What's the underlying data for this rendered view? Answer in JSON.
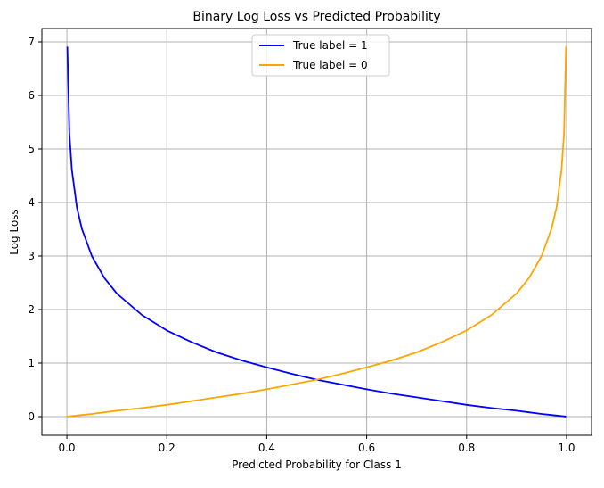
{
  "chart_data": {
    "type": "line",
    "title": "Binary Log Loss vs Predicted Probability",
    "xlabel": "Predicted Probability for Class 1",
    "ylabel": "Log Loss",
    "xlim": [
      -0.05,
      1.05
    ],
    "ylim": [
      -0.35,
      7.25
    ],
    "grid": true,
    "legend_position": "top-center",
    "x_ticks": [
      {
        "value": 0.0,
        "label": "0.0"
      },
      {
        "value": 0.2,
        "label": "0.2"
      },
      {
        "value": 0.4,
        "label": "0.4"
      },
      {
        "value": 0.6,
        "label": "0.6"
      },
      {
        "value": 0.8,
        "label": "0.8"
      },
      {
        "value": 1.0,
        "label": "1.0"
      }
    ],
    "y_ticks": [
      {
        "value": 0,
        "label": "0"
      },
      {
        "value": 1,
        "label": "1"
      },
      {
        "value": 2,
        "label": "2"
      },
      {
        "value": 3,
        "label": "3"
      },
      {
        "value": 4,
        "label": "4"
      },
      {
        "value": 5,
        "label": "5"
      },
      {
        "value": 6,
        "label": "6"
      },
      {
        "value": 7,
        "label": "7"
      }
    ],
    "x": [
      0.001,
      0.005,
      0.01,
      0.02,
      0.03,
      0.05,
      0.075,
      0.1,
      0.15,
      0.2,
      0.25,
      0.3,
      0.35,
      0.4,
      0.45,
      0.5,
      0.55,
      0.6,
      0.65,
      0.7,
      0.75,
      0.8,
      0.85,
      0.9,
      0.925,
      0.95,
      0.97,
      0.98,
      0.99,
      0.995,
      0.999
    ],
    "series": [
      {
        "name": "True label = 1",
        "color": "#0000ff",
        "values": [
          6.91,
          5.3,
          4.61,
          3.91,
          3.51,
          3.0,
          2.59,
          2.3,
          1.9,
          1.61,
          1.39,
          1.2,
          1.05,
          0.92,
          0.8,
          0.69,
          0.6,
          0.51,
          0.43,
          0.36,
          0.29,
          0.22,
          0.16,
          0.11,
          0.08,
          0.05,
          0.03,
          0.02,
          0.01,
          0.005,
          0.001
        ]
      },
      {
        "name": "True label = 0",
        "color": "#ffa500",
        "values": [
          0.001,
          0.005,
          0.01,
          0.02,
          0.03,
          0.05,
          0.08,
          0.11,
          0.16,
          0.22,
          0.29,
          0.36,
          0.43,
          0.51,
          0.6,
          0.69,
          0.8,
          0.92,
          1.05,
          1.2,
          1.39,
          1.61,
          1.9,
          2.3,
          2.59,
          3.0,
          3.51,
          3.91,
          4.61,
          5.3,
          6.91
        ]
      }
    ]
  }
}
